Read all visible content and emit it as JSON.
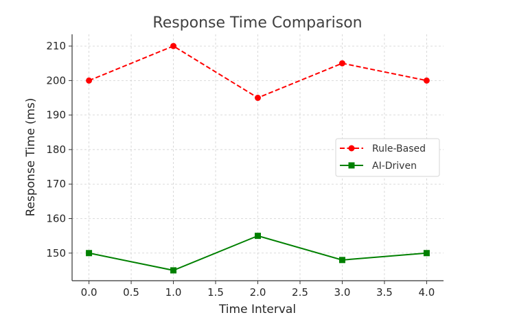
{
  "chart_data": {
    "type": "line",
    "title": "Response Time Comparison",
    "xlabel": "Time Interval",
    "ylabel": "Response Time (ms)",
    "x": [
      0,
      1,
      2,
      3,
      4
    ],
    "xlim": [
      -0.2,
      4.2
    ],
    "ylim": [
      142,
      213.4
    ],
    "xticks": [
      "0.0",
      "0.5",
      "1.0",
      "1.5",
      "2.0",
      "2.5",
      "3.0",
      "3.5",
      "4.0"
    ],
    "yticks": [
      "150",
      "160",
      "170",
      "180",
      "190",
      "200",
      "210"
    ],
    "grid": true,
    "legend_position": "center-right",
    "series": [
      {
        "name": "Rule-Based",
        "values": [
          200,
          210,
          195,
          205,
          200
        ],
        "color": "#ff0000",
        "style": "dashed",
        "marker": "circle"
      },
      {
        "name": "AI-Driven",
        "values": [
          150,
          145,
          155,
          148,
          150
        ],
        "color": "#008000",
        "style": "solid",
        "marker": "square"
      }
    ]
  }
}
